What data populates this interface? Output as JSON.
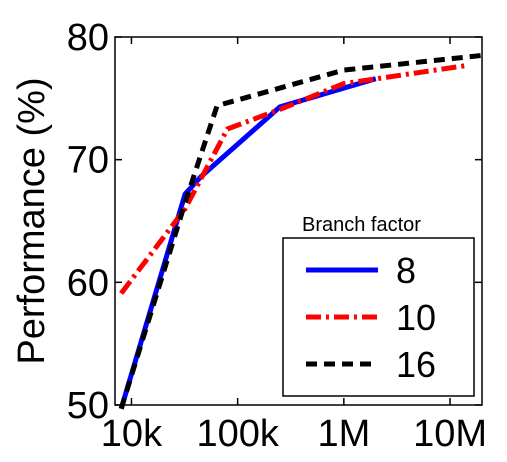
{
  "chart_data": {
    "type": "line",
    "title": "",
    "xlabel": "",
    "ylabel": "Performance (%)",
    "xscale": "log",
    "xlim": [
      7000,
      20000000
    ],
    "ylim": [
      50,
      80
    ],
    "grid": false,
    "legend_position": "bottom-right",
    "legend_title": "Branch factor",
    "x_ticks": [
      {
        "value": 10000,
        "label": "10k"
      },
      {
        "value": 100000,
        "label": "100k"
      },
      {
        "value": 1000000,
        "label": "1M"
      },
      {
        "value": 10000000,
        "label": "10M"
      }
    ],
    "y_ticks": [
      {
        "value": 50,
        "label": "50"
      },
      {
        "value": 60,
        "label": "60"
      },
      {
        "value": 70,
        "label": "70"
      },
      {
        "value": 80,
        "label": "80"
      }
    ],
    "series": [
      {
        "name": "8",
        "color": "#0000ff",
        "style": "solid",
        "points": [
          [
            8000,
            49.7
          ],
          [
            32000,
            67.2
          ],
          [
            45000,
            68.6
          ],
          [
            250000,
            74.3
          ],
          [
            2000000,
            76.6
          ]
        ]
      },
      {
        "name": "10",
        "color": "#ff0000",
        "style": "dashdot",
        "points": [
          [
            8000,
            59.1
          ],
          [
            32000,
            66.0
          ],
          [
            80000,
            72.5
          ],
          [
            250000,
            74.1
          ],
          [
            1000000,
            76.2
          ],
          [
            15000000,
            77.7
          ]
        ]
      },
      {
        "name": "16",
        "color": "#000000",
        "style": "dashed",
        "points": [
          [
            8000,
            49.7
          ],
          [
            32000,
            66.5
          ],
          [
            64000,
            74.4
          ],
          [
            1000000,
            77.3
          ],
          [
            20000000,
            78.5
          ]
        ]
      }
    ]
  }
}
